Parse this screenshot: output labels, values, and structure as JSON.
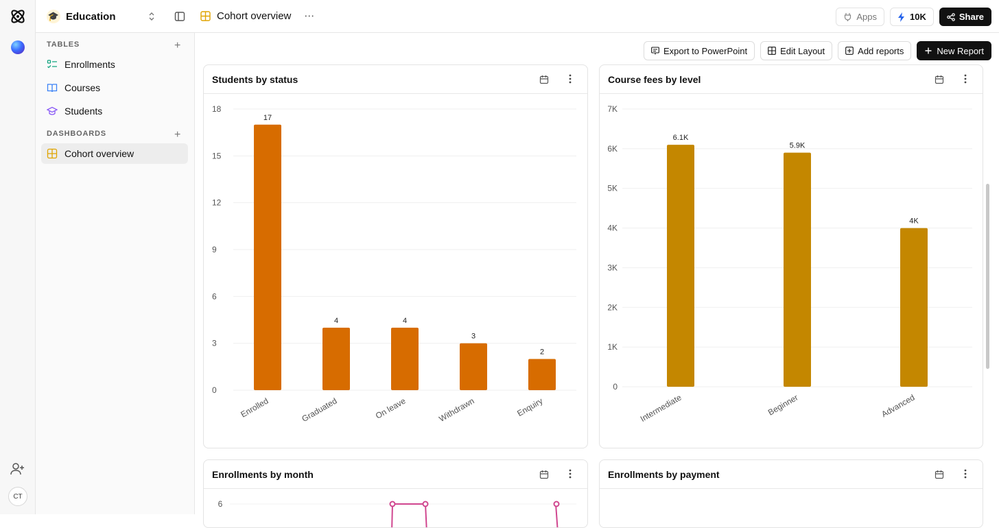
{
  "workspace": {
    "name": "Education"
  },
  "breadcrumb": {
    "title": "Cohort overview"
  },
  "topbar": {
    "apps_label": "Apps",
    "credits_label": "10K",
    "share_label": "Share"
  },
  "sidebar": {
    "tables_heading": "TABLES",
    "tables": [
      {
        "label": "Enrollments",
        "icon": "checklist-icon"
      },
      {
        "label": "Courses",
        "icon": "book-icon"
      },
      {
        "label": "Students",
        "icon": "graduation-cap-icon"
      }
    ],
    "dashboards_heading": "DASHBOARDS",
    "dashboards": [
      {
        "label": "Cohort overview",
        "icon": "grid-icon"
      }
    ]
  },
  "user": {
    "initials": "CT"
  },
  "actions": {
    "export": "Export to PowerPoint",
    "edit_layout": "Edit Layout",
    "add_reports": "Add reports",
    "new_report": "New Report"
  },
  "cards": {
    "students_by_status": "Students by status",
    "course_fees_by_level": "Course fees by level",
    "enrollments_by_month": "Enrollments by month",
    "enrollments_by_payment": "Enrollments by payment"
  },
  "colors": {
    "status_bars": "#d76c00",
    "fees_bars": "#c48700",
    "line_series": "#d0468f"
  },
  "chart_data": [
    {
      "type": "bar",
      "title": "Students by status",
      "categories": [
        "Enrolled",
        "Graduated",
        "On leave",
        "Withdrawn",
        "Enquiry"
      ],
      "values": [
        17,
        4,
        4,
        3,
        2
      ],
      "data_labels": [
        "17",
        "4",
        "4",
        "3",
        "2"
      ],
      "yticks": [
        "0",
        "3",
        "6",
        "9",
        "12",
        "15",
        "18"
      ],
      "ylim": [
        0,
        18
      ],
      "grid": true
    },
    {
      "type": "bar",
      "title": "Course fees by level",
      "categories": [
        "Intermediate",
        "Beginner",
        "Advanced"
      ],
      "values": [
        6100,
        5900,
        4000
      ],
      "data_labels": [
        "6.1K",
        "5.9K",
        "4K"
      ],
      "yticks": [
        "0",
        "1K",
        "2K",
        "3K",
        "4K",
        "5K",
        "6K",
        "7K"
      ],
      "ylim": [
        0,
        7000
      ],
      "grid": true
    },
    {
      "type": "line",
      "title": "Enrollments by month",
      "yticks": [
        "6"
      ]
    }
  ]
}
